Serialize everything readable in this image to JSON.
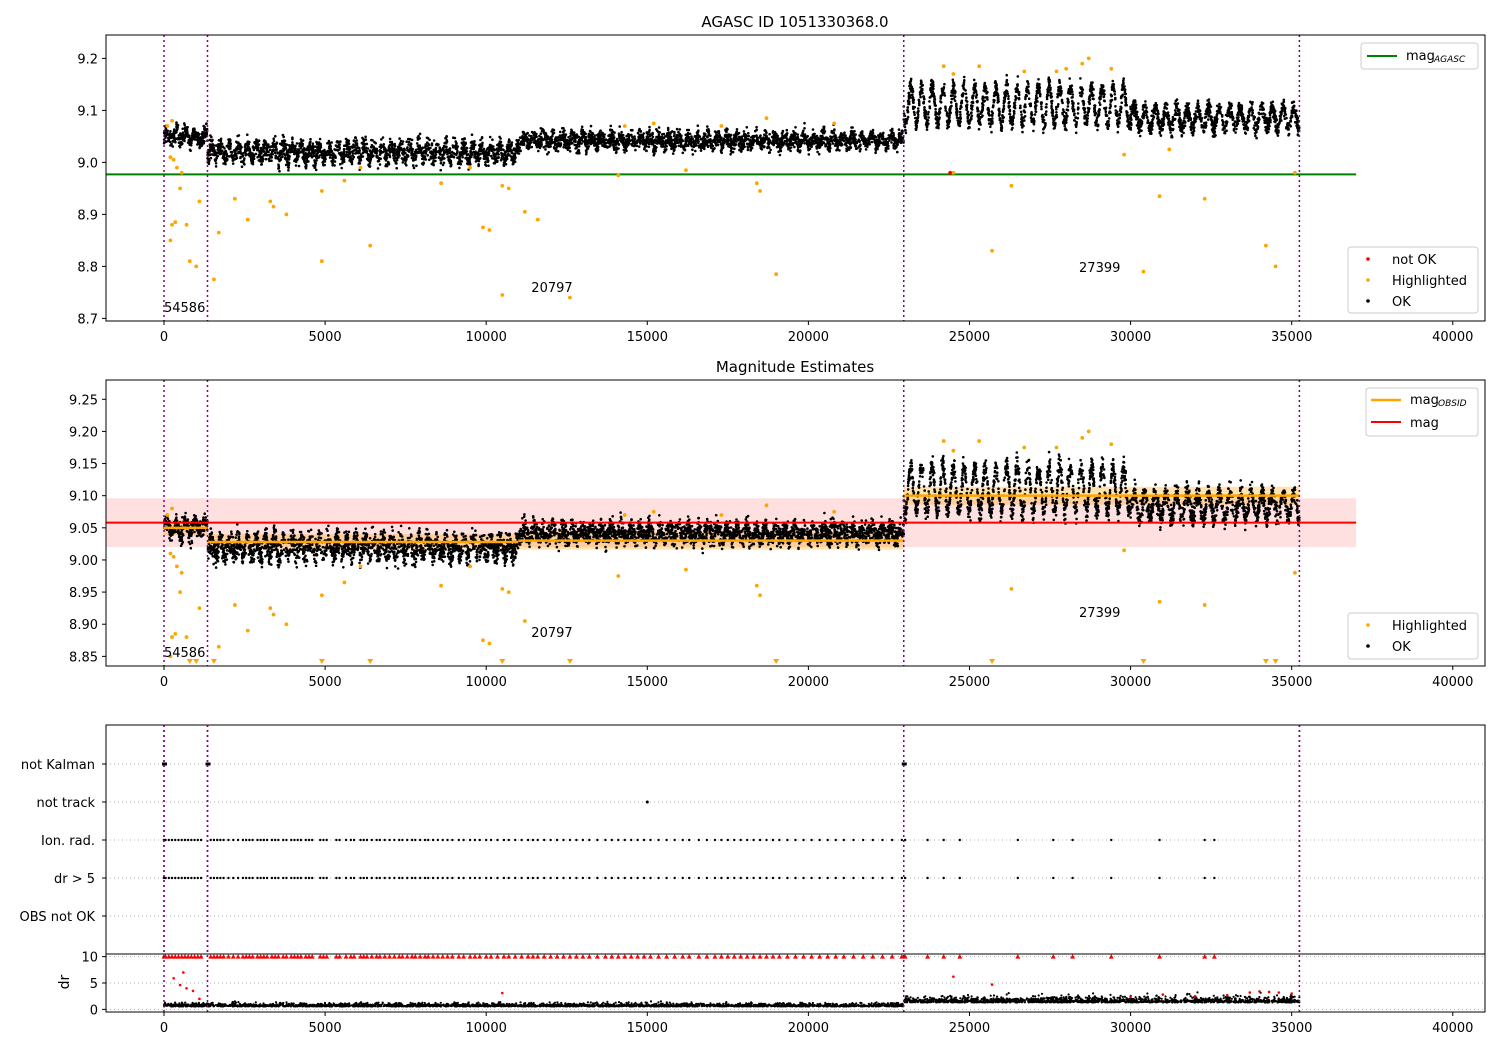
{
  "figure": {
    "title": "AGASC ID 1051330368.0"
  },
  "x_ticks": [
    0,
    5000,
    10000,
    15000,
    20000,
    25000,
    30000,
    35000,
    40000
  ],
  "obsid_boundaries": [
    0,
    1350,
    22960,
    35240
  ],
  "obsid_labels": [
    {
      "text": "54586",
      "x": 0
    },
    {
      "text": "20797",
      "x": 11400
    },
    {
      "text": "27399",
      "x": 28400
    }
  ],
  "colors": {
    "ok": "#000000",
    "highlighted": "#ffa500",
    "not_ok": "#ff0000",
    "mag_agasc": "#008000",
    "mag": "#ff0000",
    "mag_obsid": "#ffa500",
    "boundary": "#800080"
  },
  "chart_data": [
    {
      "type": "scatter",
      "title": "",
      "xlim": [
        -1800,
        41000
      ],
      "ylim": [
        8.695,
        9.245
      ],
      "y_ticks": [
        8.7,
        8.8,
        8.9,
        9.0,
        9.1,
        9.2
      ],
      "y_tick_labels": [
        "8.7",
        "8.8",
        "8.9",
        "9.0",
        "9.1",
        "9.2"
      ],
      "mag_agasc": 8.977,
      "mag_agasc_extent": [
        -1800,
        37000
      ],
      "legend_upper": [
        {
          "label": "mag",
          "sub": "AGASC",
          "color": "#008000"
        }
      ],
      "legend_lower": [
        {
          "label": "not OK",
          "color": "#ff0000"
        },
        {
          "label": "Highlighted",
          "color": "#ffa500"
        },
        {
          "label": "OK",
          "color": "#000000"
        }
      ],
      "bands": [
        {
          "x": [
            0,
            1350
          ],
          "center": 9.05,
          "amp": 0.009,
          "noise": 0.012,
          "period": 300
        },
        {
          "x": [
            1350,
            11000
          ],
          "center": 9.02,
          "amp": 0.012,
          "noise": 0.014,
          "period": 280
        },
        {
          "x": [
            11000,
            22960
          ],
          "center": 9.042,
          "amp": 0.008,
          "noise": 0.012,
          "period": 300
        },
        {
          "x": [
            22960,
            30000
          ],
          "center": 9.11,
          "amp": 0.035,
          "noise": 0.012,
          "period": 330
        },
        {
          "x": [
            30000,
            35240
          ],
          "center": 9.085,
          "amp": 0.02,
          "noise": 0.012,
          "period": 330
        }
      ],
      "highlighted": [
        [
          100,
          9.07
        ],
        [
          250,
          9.08
        ],
        [
          200,
          9.01
        ],
        [
          300,
          9.005
        ],
        [
          400,
          8.99
        ],
        [
          500,
          8.95
        ],
        [
          550,
          8.98
        ],
        [
          250,
          8.88
        ],
        [
          200,
          8.85
        ],
        [
          350,
          8.885
        ],
        [
          700,
          8.88
        ],
        [
          800,
          8.81
        ],
        [
          1000,
          8.8
        ],
        [
          1100,
          8.925
        ],
        [
          1550,
          8.775
        ],
        [
          1700,
          8.865
        ],
        [
          2200,
          8.93
        ],
        [
          2600,
          8.89
        ],
        [
          3300,
          8.925
        ],
        [
          3400,
          8.915
        ],
        [
          3800,
          8.9
        ],
        [
          4900,
          8.945
        ],
        [
          4900,
          8.81
        ],
        [
          5600,
          8.965
        ],
        [
          6100,
          8.99
        ],
        [
          6400,
          8.84
        ],
        [
          8600,
          8.96
        ],
        [
          9500,
          8.99
        ],
        [
          9900,
          8.875
        ],
        [
          10100,
          8.87
        ],
        [
          10500,
          8.955
        ],
        [
          10700,
          8.95
        ],
        [
          11200,
          8.905
        ],
        [
          11600,
          8.89
        ],
        [
          10500,
          8.745
        ],
        [
          12600,
          8.74
        ],
        [
          14100,
          8.975
        ],
        [
          14300,
          9.07
        ],
        [
          15200,
          9.075
        ],
        [
          16200,
          8.985
        ],
        [
          17300,
          9.07
        ],
        [
          18400,
          8.96
        ],
        [
          18500,
          8.945
        ],
        [
          18700,
          9.085
        ],
        [
          19000,
          8.785
        ],
        [
          20800,
          9.075
        ],
        [
          24200,
          9.185
        ],
        [
          24500,
          8.98
        ],
        [
          25300,
          9.185
        ],
        [
          26300,
          8.955
        ],
        [
          25700,
          8.83
        ],
        [
          28500,
          9.19
        ],
        [
          28700,
          9.2
        ],
        [
          29400,
          9.18
        ],
        [
          29800,
          9.015
        ],
        [
          30400,
          8.79
        ],
        [
          30900,
          8.935
        ],
        [
          31200,
          9.025
        ],
        [
          32300,
          8.93
        ],
        [
          34200,
          8.84
        ],
        [
          34500,
          8.8
        ],
        [
          35100,
          8.98
        ],
        [
          24500,
          9.17
        ],
        [
          26700,
          9.175
        ],
        [
          27700,
          9.175
        ],
        [
          28000,
          9.18
        ]
      ],
      "not_ok": [
        [
          24400,
          8.98
        ]
      ]
    },
    {
      "type": "scatter",
      "title": "Magnitude Estimates",
      "xlim": [
        -1800,
        41000
      ],
      "ylim": [
        8.835,
        9.28
      ],
      "y_ticks": [
        8.85,
        8.9,
        8.95,
        9.0,
        9.05,
        9.1,
        9.15,
        9.2,
        9.25
      ],
      "y_tick_labels": [
        "8.85",
        "8.90",
        "8.95",
        "9.00",
        "9.05",
        "9.10",
        "9.15",
        "9.20",
        "9.25"
      ],
      "mag": 9.058,
      "mag_band": [
        9.02,
        9.096
      ],
      "mag_extent": [
        -1800,
        37000
      ],
      "mag_obsid": [
        {
          "x": [
            0,
            1350
          ],
          "y": 9.05,
          "err": 0.012
        },
        {
          "x": [
            1350,
            11000
          ],
          "y": 9.028,
          "err": 0.012
        },
        {
          "x": [
            11000,
            22960
          ],
          "y": 9.03,
          "err": 0.014
        },
        {
          "x": [
            22960,
            35240
          ],
          "y": 9.1,
          "err": 0.014
        }
      ],
      "legend_upper": [
        {
          "label": "mag",
          "sub": "OBSID",
          "color": "#ffa500"
        },
        {
          "label": "mag",
          "sub": "",
          "color": "#ff0000"
        }
      ],
      "legend_lower": [
        {
          "label": "Highlighted",
          "color": "#ffa500"
        },
        {
          "label": "OK",
          "color": "#000000"
        }
      ],
      "bands": [
        {
          "x": [
            0,
            1350
          ],
          "center": 9.05,
          "amp": 0.009,
          "noise": 0.012,
          "period": 300
        },
        {
          "x": [
            1350,
            11000
          ],
          "center": 9.02,
          "amp": 0.012,
          "noise": 0.014,
          "period": 280
        },
        {
          "x": [
            11000,
            22960
          ],
          "center": 9.042,
          "amp": 0.008,
          "noise": 0.012,
          "period": 300
        },
        {
          "x": [
            22960,
            30000
          ],
          "center": 9.11,
          "amp": 0.035,
          "noise": 0.012,
          "period": 330
        },
        {
          "x": [
            30000,
            35240
          ],
          "center": 9.085,
          "amp": 0.02,
          "noise": 0.012,
          "period": 330
        }
      ],
      "highlighted": [
        [
          100,
          9.07
        ],
        [
          250,
          9.08
        ],
        [
          200,
          9.01
        ],
        [
          300,
          9.005
        ],
        [
          400,
          8.99
        ],
        [
          500,
          8.95
        ],
        [
          550,
          8.98
        ],
        [
          250,
          8.88
        ],
        [
          200,
          8.85
        ],
        [
          350,
          8.885
        ],
        [
          700,
          8.88
        ],
        [
          1100,
          8.925
        ],
        [
          1700,
          8.865
        ],
        [
          2200,
          8.93
        ],
        [
          2600,
          8.89
        ],
        [
          3300,
          8.925
        ],
        [
          3400,
          8.915
        ],
        [
          3800,
          8.9
        ],
        [
          4900,
          8.945
        ],
        [
          5600,
          8.965
        ],
        [
          6100,
          8.99
        ],
        [
          8600,
          8.96
        ],
        [
          9500,
          8.99
        ],
        [
          9900,
          8.875
        ],
        [
          10100,
          8.87
        ],
        [
          10500,
          8.955
        ],
        [
          10700,
          8.95
        ],
        [
          11200,
          8.905
        ],
        [
          14100,
          8.975
        ],
        [
          14300,
          9.07
        ],
        [
          15200,
          9.075
        ],
        [
          16200,
          8.985
        ],
        [
          17300,
          9.07
        ],
        [
          18400,
          8.96
        ],
        [
          18500,
          8.945
        ],
        [
          18700,
          9.085
        ],
        [
          20800,
          9.075
        ],
        [
          24200,
          9.185
        ],
        [
          25300,
          9.185
        ],
        [
          26300,
          8.955
        ],
        [
          28500,
          9.19
        ],
        [
          28700,
          9.2
        ],
        [
          29400,
          9.18
        ],
        [
          29800,
          9.015
        ],
        [
          30900,
          8.935
        ],
        [
          32300,
          8.93
        ],
        [
          35100,
          8.98
        ],
        [
          24500,
          9.17
        ],
        [
          26700,
          9.175
        ],
        [
          27700,
          9.175
        ]
      ],
      "clipped_low": [
        800,
        1000,
        1550,
        4900,
        6400,
        10500,
        12600,
        19000,
        25700,
        30400,
        34200,
        34500
      ]
    },
    {
      "type": "scatter",
      "title": "",
      "xlim": [
        -1800,
        41000
      ],
      "flag_rows": [
        "not Kalman",
        "not track",
        "Ion. rad.",
        "dr > 5",
        "OBS not OK"
      ],
      "not_kalman_x": [
        0,
        1350,
        22960
      ],
      "not_track_x": [
        15000
      ],
      "ion_rad_x": [
        0,
        50,
        150,
        250,
        350,
        450,
        550,
        650,
        750,
        850,
        950,
        1050,
        1150,
        1450,
        1550,
        1650,
        1750,
        1850,
        2000,
        2150,
        2300,
        2450,
        2550,
        2650,
        2750,
        2900,
        3000,
        3100,
        3200,
        3350,
        3450,
        3550,
        3700,
        3800,
        3950,
        4050,
        4150,
        4250,
        4400,
        4500,
        4600,
        4850,
        4950,
        5050,
        5350,
        5450,
        5650,
        5800,
        5900,
        6100,
        6200,
        6300,
        6450,
        6600,
        6700,
        6850,
        7000,
        7150,
        7300,
        7400,
        7550,
        7700,
        7800,
        7950,
        8100,
        8200,
        8350,
        8500,
        8650,
        8800,
        8950,
        9150,
        9300,
        9500,
        9650,
        9800,
        10000,
        10150,
        10350,
        10550,
        10700,
        10900,
        11100,
        11300,
        11450,
        11600,
        11800,
        12000,
        12200,
        12400,
        12600,
        12800,
        13000,
        13200,
        13450,
        13700,
        13900,
        14100,
        14300,
        14500,
        14700,
        14900,
        15100,
        15350,
        15600,
        15850,
        16100,
        16300,
        16600,
        16850,
        17100,
        17300,
        17500,
        17700,
        17900,
        18100,
        18300,
        18500,
        18700,
        18900,
        19100,
        19350,
        19600,
        19850,
        20100,
        20350,
        20600,
        20850,
        21100,
        21400,
        21700,
        22000,
        22300,
        22600,
        22900,
        23000,
        23700,
        24200,
        24700,
        26500,
        27600,
        28200,
        29400,
        30900,
        32300,
        32600
      ],
      "dr5_x": [
        0,
        50,
        150,
        250,
        350,
        450,
        550,
        650,
        750,
        850,
        950,
        1050,
        1150,
        1450,
        1550,
        1650,
        1750,
        1850,
        2000,
        2150,
        2300,
        2450,
        2550,
        2650,
        2750,
        2900,
        3000,
        3100,
        3200,
        3350,
        3450,
        3550,
        3700,
        3800,
        3950,
        4050,
        4150,
        4250,
        4400,
        4500,
        4600,
        4850,
        4950,
        5050,
        5350,
        5450,
        5650,
        5800,
        5900,
        6100,
        6200,
        6300,
        6450,
        6600,
        6700,
        6850,
        7000,
        7150,
        7300,
        7400,
        7550,
        7700,
        7800,
        7950,
        8100,
        8200,
        8350,
        8500,
        8650,
        8800,
        8950,
        9150,
        9300,
        9500,
        9650,
        9800,
        10000,
        10150,
        10350,
        10550,
        10700,
        10900,
        11100,
        11300,
        11450,
        11600,
        11800,
        12000,
        12200,
        12400,
        12600,
        12800,
        13000,
        13200,
        13450,
        13700,
        13900,
        14100,
        14300,
        14500,
        14700,
        14900,
        15100,
        15350,
        15600,
        15850,
        16100,
        16300,
        16600,
        16850,
        17100,
        17300,
        17500,
        17700,
        17900,
        18100,
        18300,
        18500,
        18700,
        18900,
        19100,
        19350,
        19600,
        19850,
        20100,
        20350,
        20600,
        20850,
        21100,
        21400,
        21700,
        22000,
        22300,
        22600,
        22900,
        23000,
        23700,
        24200,
        24700,
        26500,
        27600,
        28200,
        29400,
        30900,
        32300,
        32600
      ]
    },
    {
      "type": "scatter",
      "title": "",
      "ylabel": "dr",
      "xlim": [
        -1800,
        41000
      ],
      "ylim": [
        -0.5,
        10.5
      ],
      "y_ticks": [
        0,
        5,
        10
      ],
      "y_tick_labels": [
        "0",
        "5",
        "10"
      ],
      "dr_bands": [
        {
          "x": [
            0,
            22960
          ],
          "center": 0.55,
          "spread": 0.5
        },
        {
          "x": [
            22960,
            35240
          ],
          "center": 1.3,
          "spread": 0.9
        }
      ],
      "red_points": [
        [
          300,
          5.9
        ],
        [
          500,
          4.6
        ],
        [
          600,
          7.0
        ],
        [
          700,
          4.0
        ],
        [
          900,
          3.5
        ],
        [
          1100,
          2.0
        ],
        [
          10500,
          3.1
        ],
        [
          24500,
          6.2
        ],
        [
          25700,
          4.7
        ],
        [
          30000,
          2.4
        ],
        [
          31000,
          2.8
        ],
        [
          32000,
          2.5
        ],
        [
          33000,
          2.7
        ],
        [
          33700,
          3.2
        ],
        [
          34000,
          3.4
        ],
        [
          34300,
          3.3
        ],
        [
          34600,
          3.2
        ],
        [
          35000,
          3.0
        ]
      ]
    }
  ]
}
